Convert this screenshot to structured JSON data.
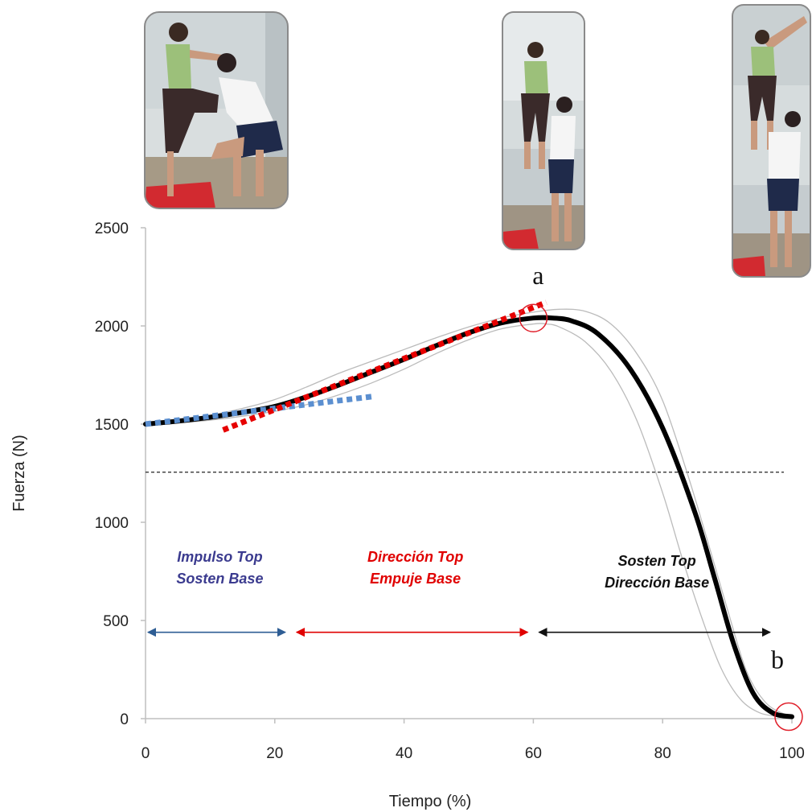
{
  "chart_data": {
    "type": "line",
    "xlabel": "Tiempo (%)",
    "ylabel": "Fuerza (N)",
    "xlim": [
      0,
      100
    ],
    "ylim": [
      0,
      2500
    ],
    "x_ticks": [
      "0",
      "20",
      "40",
      "60",
      "80",
      "100"
    ],
    "y_ticks": [
      "0",
      "500",
      "1000",
      "1500",
      "2000",
      "2500"
    ],
    "grid": false,
    "series": [
      {
        "role": "mean",
        "color": "#000000",
        "x": [
          0,
          5,
          10,
          15,
          20,
          25,
          30,
          35,
          40,
          45,
          50,
          55,
          60,
          63,
          66,
          70,
          75,
          80,
          85,
          88,
          91,
          94,
          97,
          100
        ],
        "y": [
          1500,
          1515,
          1535,
          1560,
          1590,
          1640,
          1700,
          1765,
          1830,
          1900,
          1965,
          2015,
          2040,
          2040,
          2025,
          1960,
          1780,
          1480,
          1050,
          720,
          380,
          130,
          30,
          10
        ]
      },
      {
        "role": "upper-band",
        "color": "#bbbbbb",
        "x": [
          0,
          5,
          10,
          15,
          20,
          25,
          30,
          35,
          40,
          45,
          50,
          55,
          60,
          64,
          68,
          72,
          76,
          80,
          84,
          87,
          90,
          93,
          96,
          99
        ],
        "y": [
          1510,
          1525,
          1545,
          1580,
          1625,
          1690,
          1760,
          1820,
          1880,
          1940,
          1995,
          2040,
          2070,
          2085,
          2075,
          2010,
          1860,
          1620,
          1230,
          900,
          560,
          240,
          80,
          20
        ]
      },
      {
        "role": "lower-band",
        "color": "#bbbbbb",
        "x": [
          0,
          5,
          10,
          15,
          20,
          25,
          30,
          35,
          40,
          45,
          50,
          55,
          60,
          62,
          64,
          68,
          72,
          76,
          80,
          83,
          86,
          89,
          92,
          95,
          98
        ],
        "y": [
          1490,
          1505,
          1520,
          1540,
          1565,
          1600,
          1650,
          1710,
          1780,
          1860,
          1930,
          1985,
          2010,
          2010,
          1995,
          1920,
          1770,
          1520,
          1150,
          820,
          520,
          260,
          100,
          30,
          10
        ]
      },
      {
        "role": "trend-blue",
        "color": "#5b8fd0",
        "x": [
          0,
          35
        ],
        "y": [
          1500,
          1640
        ]
      },
      {
        "role": "trend-red",
        "color": "#e60000",
        "x": [
          12,
          62
        ],
        "y": [
          1470,
          2120
        ]
      }
    ],
    "reference_line": {
      "y": 1255,
      "style": "dashed"
    },
    "phases": [
      {
        "lines": [
          "Impulso Top",
          "Sosten Base"
        ],
        "color": "#3b3b8f",
        "x_start": 0,
        "x_end": 22
      },
      {
        "lines": [
          "Dirección Top",
          "Empuje Base"
        ],
        "color": "#e00000",
        "x_start": 23,
        "x_end": 59.5
      },
      {
        "lines": [
          "Sosten Top",
          "Dirección Base"
        ],
        "color": "#111111",
        "x_start": 60.5,
        "x_end": 97
      }
    ],
    "phase_arrow_y": 440,
    "points": [
      {
        "label": "a",
        "x": 60,
        "y": 2040
      },
      {
        "label": "b",
        "x": 99.5,
        "y": 10
      }
    ]
  },
  "photos": [
    {
      "name": "photo-phase-impulse",
      "description": "top-standing-on-base-thigh"
    },
    {
      "name": "photo-phase-direction",
      "description": "top-lifted-by-base"
    },
    {
      "name": "photo-phase-hold",
      "description": "top-held-overhead"
    }
  ]
}
